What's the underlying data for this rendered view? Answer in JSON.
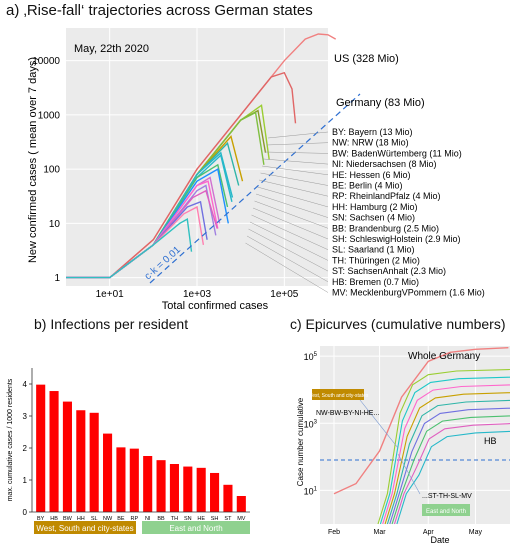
{
  "panel_a": {
    "title": "a) ‚Rise-fall‘ trajectories across German states",
    "date_label": "May, 22th 2020",
    "ylabel": "New confirmed cases ( mean over 7 days)",
    "xlabel": "Total confirmed cases",
    "yticks": [
      "1",
      "10",
      "100",
      "1000",
      "10000"
    ],
    "xticks": [
      "1e+01",
      "1e+03",
      "1e+05"
    ],
    "label_us": "US (328 Mio)",
    "label_germany": "Germany (83 Mio)",
    "label_ck": "c·k = 0.01",
    "states": [
      "BY: Bayern (13 Mio)",
      "NW: NRW (18 Mio)",
      "BW: BadenWürtemberg (11 Mio)",
      "NI: Niedersachsen (8 Mio)",
      "HE: Hessen (6 Mio)",
      "BE: Berlin (4 Mio)",
      "RP: RheinlandPfalz (4 Mio)",
      "HH: Hamburg (2 Mio)",
      "SN: Sachsen (4 Mio)",
      "BB: Brandenburg (2.5 Mio)",
      "SH: SchleswigHolstein (2.9 Mio)",
      "SL: Saarland (1 Mio)",
      "TH: Thüringen (2 Mio)",
      "ST: SachsenAnhalt (2.3 Mio)",
      "HB: Bremen (0.7 Mio)",
      "MV: MecklenburgVPommern (1.6 Mio)"
    ]
  },
  "panel_b": {
    "title": "b) Infections per resident",
    "ylabel": "max. cumulative cases / 1000 residents",
    "yticks": [
      "0",
      "1",
      "2",
      "3",
      "4"
    ],
    "group_west": "West, South and city-states",
    "group_east": "East and North"
  },
  "panel_c": {
    "title": "c) Epicurves (cumulative numbers)",
    "ylabel": "Case number cumulative",
    "xlabel": "Date",
    "xticks": [
      "Feb",
      "Mar",
      "Apr",
      "May"
    ],
    "yticks": [
      "10",
      "10",
      "10"
    ],
    "yexps": [
      "1",
      "3",
      "5"
    ],
    "whole_label": "Whole Germany",
    "legend_west": "West, South and city-states",
    "legend_east": "East and North",
    "group1": "NW-BW-BY-NI-HE...",
    "group2": "...ST-TH-SL-MV",
    "hb": "HB"
  },
  "chart_data": [
    {
      "type": "line",
      "title": "‚Rise-fall‘ trajectories across German states",
      "xlabel": "Total confirmed cases",
      "ylabel": "New confirmed cases ( mean over 7 days)",
      "xscale": "log",
      "yscale": "log",
      "xlim": [
        1,
        1000000
      ],
      "ylim": [
        0.7,
        40000
      ],
      "series": [
        {
          "name": "US (328 Mio)",
          "x": [
            1,
            10,
            100,
            1000,
            10000,
            100000,
            300000,
            600000,
            1000000,
            1500000
          ],
          "y": [
            1,
            1,
            5,
            100,
            1000,
            10000,
            25000,
            31000,
            30000,
            25000
          ]
        },
        {
          "name": "Germany (83 Mio)",
          "x": [
            1,
            10,
            100,
            1000,
            10000,
            50000,
            100000,
            150000,
            180000
          ],
          "y": [
            1,
            1,
            5,
            100,
            1000,
            5000,
            6000,
            3000,
            700
          ]
        },
        {
          "name": "BY: Bayern (13 Mio)",
          "x": [
            1,
            10,
            100,
            1000,
            10000,
            30000,
            45000
          ],
          "y": [
            1,
            1,
            4,
            80,
            800,
            1500,
            150
          ]
        },
        {
          "name": "NW: NRW (18 Mio)",
          "x": [
            1,
            10,
            100,
            1000,
            10000,
            25000,
            37000
          ],
          "y": [
            1,
            1,
            4,
            80,
            800,
            1200,
            200
          ]
        },
        {
          "name": "BW: BadenWürtemberg (11 Mio)",
          "x": [
            1,
            10,
            100,
            1000,
            10000,
            22000,
            34000
          ],
          "y": [
            1,
            1,
            4,
            80,
            800,
            1100,
            120
          ]
        },
        {
          "name": "NI: Niedersachsen (8 Mio)",
          "x": [
            1,
            10,
            100,
            1000,
            6000,
            11000
          ],
          "y": [
            1,
            1,
            4,
            80,
            400,
            60
          ]
        },
        {
          "name": "HE: Hessen (6 Mio)",
          "x": [
            1,
            10,
            100,
            1000,
            5000,
            9000
          ],
          "y": [
            1,
            1,
            4,
            80,
            300,
            50
          ]
        },
        {
          "name": "BE: Berlin (4 Mio)",
          "x": [
            1,
            10,
            100,
            1000,
            3500,
            6500
          ],
          "y": [
            1,
            1,
            4,
            80,
            200,
            30
          ]
        },
        {
          "name": "RP: RheinlandPfalz (4 Mio)",
          "x": [
            1,
            10,
            100,
            1000,
            3500,
            6300
          ],
          "y": [
            1,
            1,
            4,
            70,
            180,
            25
          ]
        },
        {
          "name": "HH: Hamburg (2 Mio)",
          "x": [
            1,
            10,
            100,
            1000,
            3000,
            5000
          ],
          "y": [
            1,
            1,
            4,
            70,
            120,
            20
          ]
        },
        {
          "name": "SN: Sachsen (4 Mio)",
          "x": [
            1,
            10,
            100,
            1000,
            3000,
            5200
          ],
          "y": [
            1,
            1,
            4,
            60,
            100,
            10
          ]
        },
        {
          "name": "BB: Brandenburg (2.5 Mio)",
          "x": [
            1,
            10,
            100,
            1000,
            2000,
            3300
          ],
          "y": [
            1,
            1,
            4,
            50,
            70,
            10
          ]
        },
        {
          "name": "SH: SchleswigHolstein (2.9 Mio)",
          "x": [
            1,
            10,
            100,
            1000,
            1800,
            3000
          ],
          "y": [
            1,
            1,
            4,
            50,
            60,
            8
          ]
        },
        {
          "name": "SL: Saarland (1 Mio)",
          "x": [
            1,
            10,
            100,
            1000,
            1600,
            2700
          ],
          "y": [
            1,
            1,
            4,
            40,
            50,
            6
          ]
        },
        {
          "name": "TH: Thüringen (2 Mio)",
          "x": [
            1,
            10,
            100,
            800,
            1600,
            2900
          ],
          "y": [
            1,
            1,
            4,
            30,
            40,
            8
          ]
        },
        {
          "name": "ST: SachsenAnhalt (2.3 Mio)",
          "x": [
            1,
            10,
            100,
            600,
            1200,
            1700
          ],
          "y": [
            1,
            1,
            4,
            20,
            25,
            5
          ]
        },
        {
          "name": "HB: Bremen (0.7 Mio)",
          "x": [
            1,
            10,
            100,
            500,
            1000,
            1400
          ],
          "y": [
            1,
            1,
            4,
            15,
            20,
            4
          ]
        },
        {
          "name": "MV: MecklenburgVPommern (1.6 Mio)",
          "x": [
            1,
            10,
            100,
            400,
            600,
            750
          ],
          "y": [
            1,
            1,
            4,
            10,
            12,
            3
          ]
        }
      ],
      "reference_line": {
        "name": "c·k = 0.01",
        "x": [
          300,
          1000000
        ],
        "y": [
          3,
          10000
        ]
      }
    },
    {
      "type": "bar",
      "title": "Infections per resident",
      "ylabel": "max. cumulative cases / 1000 residents",
      "ylim": [
        0,
        4.5
      ],
      "categories": [
        "BY",
        "HB",
        "BW",
        "HH",
        "SL",
        "NW",
        "BE",
        "RP",
        "NI",
        "BB",
        "TH",
        "SN",
        "HE",
        "SH",
        "ST",
        "MV"
      ],
      "values": [
        3.98,
        3.78,
        3.45,
        3.18,
        3.1,
        2.45,
        2.02,
        1.98,
        1.75,
        1.62,
        1.5,
        1.42,
        1.38,
        1.22,
        0.85,
        0.5
      ],
      "color": "#ff0000",
      "groups": [
        {
          "name": "West, South and city-states",
          "categories": [
            "BY",
            "HB",
            "BW",
            "HH",
            "SL",
            "NW",
            "BE",
            "RP"
          ],
          "color": "#c08a00"
        },
        {
          "name": "East and North",
          "categories": [
            "BB",
            "TH",
            "SN",
            "HE",
            "SH",
            "ST",
            "MV"
          ],
          "color": "#8fd18f"
        }
      ]
    },
    {
      "type": "line",
      "title": "Epicurves (cumulative numbers)",
      "xlabel": "Date",
      "ylabel": "Case number cumulative",
      "yscale": "log",
      "xticks": [
        "Feb",
        "Mar",
        "Apr",
        "May"
      ],
      "ylim": [
        1,
        200000
      ],
      "reference_y": 50,
      "series": [
        {
          "name": "Whole Germany",
          "x": [
            "Feb 1",
            "Feb 15",
            "Mar 1",
            "Mar 15",
            "Apr 1",
            "Apr 15",
            "May 1",
            "May 22"
          ],
          "y": [
            8,
            16,
            150,
            6000,
            70000,
            130000,
            160000,
            178000
          ]
        },
        {
          "name": "NW-BW-BY-NI-HE...",
          "x": [
            "Mar 1",
            "Mar 15",
            "Apr 1",
            "Apr 15",
            "May 22"
          ],
          "y": [
            20,
            3000,
            20000,
            30000,
            40000
          ]
        },
        {
          "name": "HB",
          "x": [
            "Mar 5",
            "Mar 20",
            "Apr 5",
            "May 22"
          ],
          "y": [
            5,
            100,
            400,
            1300
          ]
        },
        {
          "name": "...ST-TH-SL-MV",
          "x": [
            "Mar 8",
            "Mar 20",
            "Apr 5",
            "May 22"
          ],
          "y": [
            2,
            60,
            400,
            900
          ]
        }
      ]
    }
  ]
}
